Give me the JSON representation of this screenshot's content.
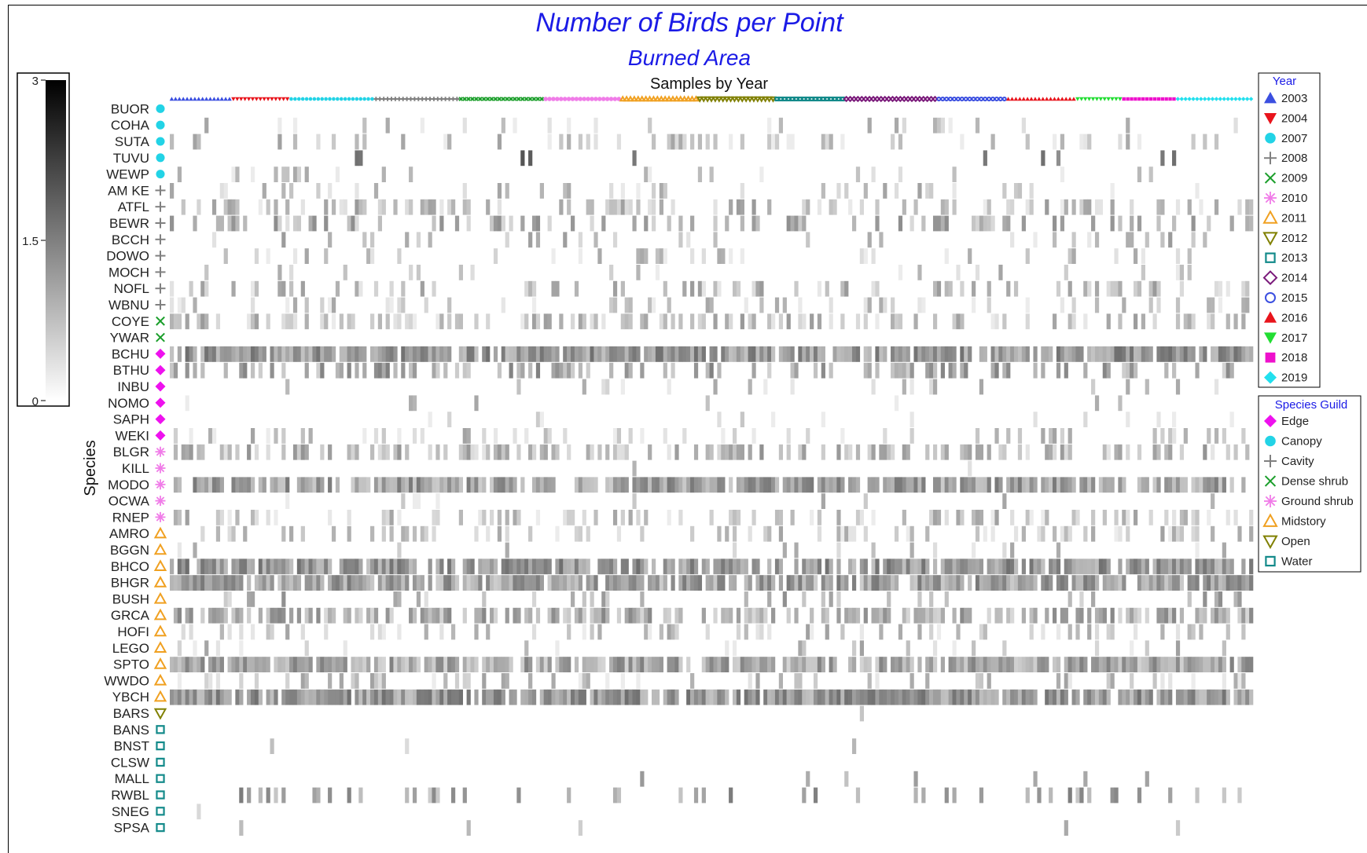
{
  "chart_data": {
    "type": "heatmap",
    "title": "Number of Birds per Point",
    "subtitle": "Burned Area",
    "xlabel": "Samples by Year",
    "ylabel": "Species",
    "colorbar": {
      "min": 0,
      "mid": 1.5,
      "max": 3,
      "tick_labels": [
        "3",
        "1.5",
        "0"
      ],
      "low_color": "#ffffff",
      "high_color": "#000000"
    },
    "year_legend": {
      "title": "Year",
      "items": [
        {
          "label": "2003",
          "marker": "triangle-up",
          "color": "#3b4fe0"
        },
        {
          "label": "2004",
          "marker": "triangle-down",
          "color": "#e8141c"
        },
        {
          "label": "2007",
          "marker": "circle",
          "color": "#22d3e6"
        },
        {
          "label": "2008",
          "marker": "plus",
          "color": "#808080"
        },
        {
          "label": "2009",
          "marker": "x",
          "color": "#1a9e2a"
        },
        {
          "label": "2010",
          "marker": "asterisk",
          "color": "#f07ce8"
        },
        {
          "label": "2011",
          "marker": "triangle-up-open",
          "color": "#f0a020"
        },
        {
          "label": "2012",
          "marker": "triangle-down-open",
          "color": "#808000"
        },
        {
          "label": "2013",
          "marker": "square-open",
          "color": "#138a8a"
        },
        {
          "label": "2014",
          "marker": "diamond-open",
          "color": "#7a1a7a"
        },
        {
          "label": "2015",
          "marker": "circle-open",
          "color": "#3b4fe0"
        },
        {
          "label": "2016",
          "marker": "triangle-up",
          "color": "#e8141c"
        },
        {
          "label": "2017",
          "marker": "triangle-down",
          "color": "#22dd33"
        },
        {
          "label": "2018",
          "marker": "square",
          "color": "#ee11cc"
        },
        {
          "label": "2019",
          "marker": "diamond",
          "color": "#22e0ee"
        }
      ]
    },
    "guild_legend": {
      "title": "Species Guild",
      "items": [
        {
          "label": "Edge",
          "marker": "diamond",
          "color": "#ee11ee"
        },
        {
          "label": "Canopy",
          "marker": "circle",
          "color": "#22d3e6"
        },
        {
          "label": "Cavity",
          "marker": "plus",
          "color": "#808080"
        },
        {
          "label": "Dense shrub",
          "marker": "x",
          "color": "#1a9e2a"
        },
        {
          "label": "Ground shrub",
          "marker": "asterisk",
          "color": "#f07ce8"
        },
        {
          "label": "Midstory",
          "marker": "triangle-up-open",
          "color": "#f0a020"
        },
        {
          "label": "Open",
          "marker": "triangle-down-open",
          "color": "#808000"
        },
        {
          "label": "Water",
          "marker": "square-open",
          "color": "#138a8a"
        }
      ]
    },
    "year_samples": [
      16,
      15,
      22,
      22,
      22,
      20,
      20,
      20,
      18,
      24,
      18,
      18,
      12,
      14,
      20
    ],
    "species": [
      {
        "code": "BUOR",
        "guild": "Canopy",
        "density": 0.0,
        "level": 0.2
      },
      {
        "code": "COHA",
        "guild": "Canopy",
        "density": 0.08,
        "level": 0.2
      },
      {
        "code": "SUTA",
        "guild": "Canopy",
        "density": 0.18,
        "level": 0.22
      },
      {
        "code": "TUVU",
        "guild": "Canopy",
        "density": 0.03,
        "level": 0.55
      },
      {
        "code": "WEWP",
        "guild": "Canopy",
        "density": 0.08,
        "level": 0.2
      },
      {
        "code": "AM KE",
        "guild": "Cavity",
        "density": 0.12,
        "level": 0.22
      },
      {
        "code": "ATFL",
        "guild": "Cavity",
        "density": 0.35,
        "level": 0.25
      },
      {
        "code": "BEWR",
        "guild": "Cavity",
        "density": 0.32,
        "level": 0.3
      },
      {
        "code": "BCCH",
        "guild": "Cavity",
        "density": 0.12,
        "level": 0.25
      },
      {
        "code": "DOWO",
        "guild": "Cavity",
        "density": 0.14,
        "level": 0.2
      },
      {
        "code": "MOCH",
        "guild": "Cavity",
        "density": 0.08,
        "level": 0.2
      },
      {
        "code": "NOFL",
        "guild": "Cavity",
        "density": 0.22,
        "level": 0.25
      },
      {
        "code": "WBNU",
        "guild": "Cavity",
        "density": 0.18,
        "level": 0.2
      },
      {
        "code": "COYE",
        "guild": "Dense shrub",
        "density": 0.4,
        "level": 0.25
      },
      {
        "code": "YWAR",
        "guild": "Dense shrub",
        "density": 0.0,
        "level": 0.2
      },
      {
        "code": "BCHU",
        "guild": "Edge",
        "density": 0.88,
        "level": 0.42
      },
      {
        "code": "BTHU",
        "guild": "Edge",
        "density": 0.35,
        "level": 0.35
      },
      {
        "code": "INBU",
        "guild": "Edge",
        "density": 0.05,
        "level": 0.2
      },
      {
        "code": "NOMO",
        "guild": "Edge",
        "density": 0.04,
        "level": 0.2
      },
      {
        "code": "SAPH",
        "guild": "Edge",
        "density": 0.05,
        "level": 0.2
      },
      {
        "code": "WEKI",
        "guild": "Edge",
        "density": 0.2,
        "level": 0.22
      },
      {
        "code": "BLGR",
        "guild": "Ground shrub",
        "density": 0.45,
        "level": 0.28
      },
      {
        "code": "KILL",
        "guild": "Ground shrub",
        "density": 0.01,
        "level": 0.2
      },
      {
        "code": "MODO",
        "guild": "Ground shrub",
        "density": 0.8,
        "level": 0.38
      },
      {
        "code": "OCWA",
        "guild": "Ground shrub",
        "density": 0.02,
        "level": 0.2
      },
      {
        "code": "RNEP",
        "guild": "Ground shrub",
        "density": 0.3,
        "level": 0.22
      },
      {
        "code": "AMRO",
        "guild": "Midstory",
        "density": 0.22,
        "level": 0.22
      },
      {
        "code": "BGGN",
        "guild": "Midstory",
        "density": 0.05,
        "level": 0.2
      },
      {
        "code": "BHCO",
        "guild": "Midstory",
        "density": 0.75,
        "level": 0.42
      },
      {
        "code": "BHGR",
        "guild": "Midstory",
        "density": 0.85,
        "level": 0.38
      },
      {
        "code": "BUSH",
        "guild": "Midstory",
        "density": 0.12,
        "level": 0.3
      },
      {
        "code": "GRCA",
        "guild": "Midstory",
        "density": 0.6,
        "level": 0.33
      },
      {
        "code": "HOFI",
        "guild": "Midstory",
        "density": 0.2,
        "level": 0.22
      },
      {
        "code": "LEGO",
        "guild": "Midstory",
        "density": 0.1,
        "level": 0.22
      },
      {
        "code": "SPTO",
        "guild": "Midstory",
        "density": 0.88,
        "level": 0.35
      },
      {
        "code": "WWDO",
        "guild": "Midstory",
        "density": 0.22,
        "level": 0.22
      },
      {
        "code": "YBCH",
        "guild": "Midstory",
        "density": 0.9,
        "level": 0.42
      },
      {
        "code": "BARS",
        "guild": "Open",
        "density": 0.01,
        "level": 0.2
      },
      {
        "code": "BANS",
        "guild": "Water",
        "density": 0.0,
        "level": 0.2
      },
      {
        "code": "BNST",
        "guild": "Water",
        "density": 0.01,
        "level": 0.2
      },
      {
        "code": "CLSW",
        "guild": "Water",
        "density": 0.0,
        "level": 0.2
      },
      {
        "code": "MALL",
        "guild": "Water",
        "density": 0.04,
        "level": 0.25
      },
      {
        "code": "RWBL",
        "guild": "Water",
        "density": 0.16,
        "level": 0.38
      },
      {
        "code": "SNEG",
        "guild": "Water",
        "density": 0.01,
        "level": 0.2
      },
      {
        "code": "SPSA",
        "guild": "Water",
        "density": 0.01,
        "level": 0.22
      }
    ]
  }
}
